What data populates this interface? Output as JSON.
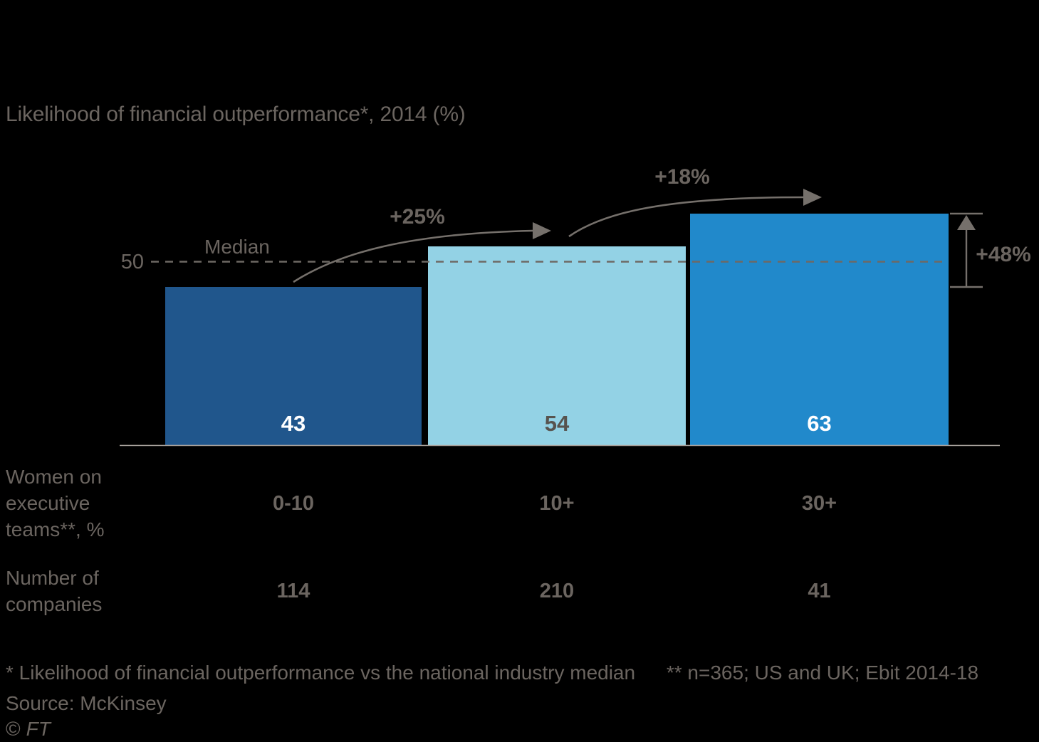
{
  "title": "Likelihood of financial outperformance*, 2014 (%)",
  "chart_data": {
    "type": "bar",
    "title": "Likelihood of financial outperformance*, 2014 (%)",
    "categories": [
      "0-10",
      "10+",
      "30+"
    ],
    "values": [
      43,
      54,
      63
    ],
    "colors": [
      "#20568C",
      "#93D2E5",
      "#2189CB"
    ],
    "value_label_colors": [
      "#FFFFFF",
      "#57534E",
      "#FFFFFF"
    ],
    "median": {
      "value": 50,
      "tick": "50",
      "label": "Median"
    },
    "annotations": {
      "bar1_to_bar2": "+25%",
      "bar2_to_bar3": "+18%",
      "bar1_to_bar3": "+48%"
    },
    "x_axis_title": "Women on\nexecutive\nteams**, %",
    "companies_row": {
      "label": "Number of\ncompanies",
      "values": [
        "114",
        "210",
        "41"
      ]
    },
    "ylim": [
      0,
      70
    ],
    "grid": false,
    "legend": false
  },
  "footnotes": {
    "footnote_1": "* Likelihood of financial outperformance vs the national industry median",
    "footnote_2": "** n=365; US and UK; Ebit 2014-18"
  },
  "source": "Source: McKinsey",
  "copyright": {
    "symbol": "©",
    "name": "FT"
  }
}
